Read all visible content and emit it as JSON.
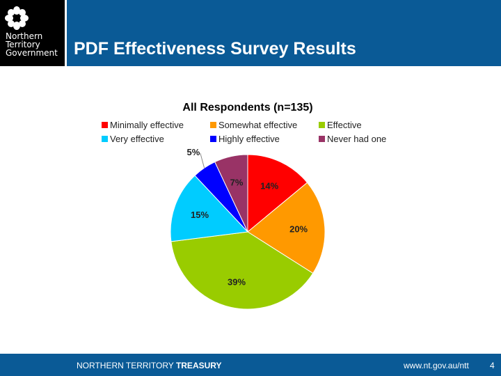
{
  "header": {
    "logo_lines": [
      "Northern",
      "Territory",
      "Government"
    ],
    "title": "PDF Effectiveness Survey Results"
  },
  "footer": {
    "org_regular": "NORTHERN TERRITORY",
    "org_bold": "TREASURY",
    "url": "www.nt.gov.au/ntt",
    "page": "4"
  },
  "chart_data": {
    "type": "pie",
    "title": "All Respondents (n=135)",
    "legend_position": "top",
    "series": [
      {
        "name": "Minimally effective",
        "value": 14,
        "label": "14%",
        "color": "#ff0000"
      },
      {
        "name": "Somewhat effective",
        "value": 20,
        "label": "20%",
        "color": "#ff9900"
      },
      {
        "name": "Effective",
        "value": 39,
        "label": "39%",
        "color": "#99cc00"
      },
      {
        "name": "Very effective",
        "value": 15,
        "label": "15%",
        "color": "#00ccff"
      },
      {
        "name": "Highly effective",
        "value": 5,
        "label": "5%",
        "color": "#0000ff"
      },
      {
        "name": "Never had one",
        "value": 7,
        "label": "7%",
        "color": "#993366"
      }
    ]
  }
}
